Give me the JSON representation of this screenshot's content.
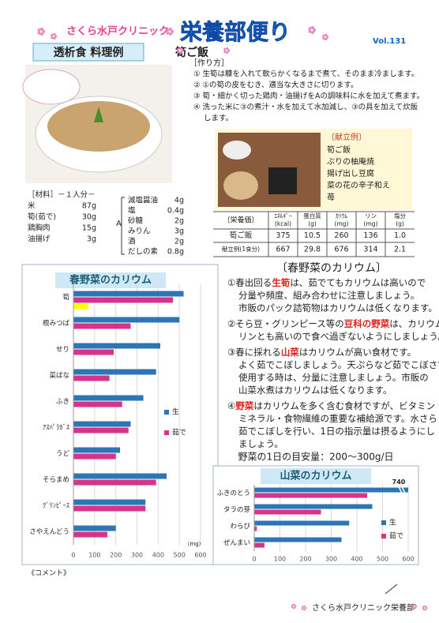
{
  "header": {
    "clinic": "さくら水戸クリニック",
    "title": "栄養部便り",
    "vol": "Vol.131",
    "label": "透析食 料理例",
    "dish": "筍ご飯"
  },
  "method": {
    "heading": "［作り方］",
    "steps": [
      "① 生筍は糠を入れて軟らかくなるまで煮て、そのまま冷まします。",
      "② ①の筍の皮をむき、適当な大きさに切ります。",
      "③ 筍・細かく切った鶏肉・油揚げをAの調味料に水を加えて煮ます。",
      "④ 洗った米に③の煮汁・水を加えて水加減し、③の具を加えて炊飯",
      "します。"
    ]
  },
  "menu": {
    "heading": "〔献立例〕",
    "items": [
      "筍ご飯",
      "ぶりの柚庵焼",
      "揚げ出し豆腐",
      "菜の花の辛子和え",
      "苺"
    ]
  },
  "ingredients": {
    "heading": "［材料］－１人分－",
    "main": [
      [
        "米",
        "87g"
      ],
      [
        "筍(茹で)",
        "30g"
      ],
      [
        "鶏胸肉",
        "15g"
      ],
      [
        "油揚げ",
        "3g"
      ]
    ],
    "group": "A",
    "seasoning": [
      [
        "減塩醤油",
        "4g"
      ],
      [
        "塩",
        "0.4g"
      ],
      [
        "砂糖",
        "2g"
      ],
      [
        "みりん",
        "3g"
      ],
      [
        "酒",
        "2g"
      ],
      [
        "だしの素",
        "0.8g"
      ]
    ]
  },
  "table": {
    "header": [
      "〔栄養価〕",
      [
        "ｴﾈﾙｷﾞｰ",
        "(kcal)"
      ],
      [
        "蛋白質",
        "(g)"
      ],
      [
        "ｶﾘｳﾑ",
        "(mg)"
      ],
      [
        "リン",
        "(mg)"
      ],
      [
        "塩分",
        "(g)"
      ]
    ],
    "rows": [
      [
        "筍ご飯",
        "375",
        "10.5",
        "260",
        "136",
        "1.0"
      ],
      [
        "献立例(1食分)",
        "667",
        "29.8",
        "676",
        "314",
        "2.1"
      ]
    ]
  },
  "text": {
    "title": "〔春野菜のカリウム〕",
    "items": [
      [
        [
          "①春出回る",
          {
            "text": "生筍",
            "color": "#e0201b"
          },
          "は、茹でてもカリウムは高いので"
        ],
        [
          "分量や頻度、組み合わせに注意しましょう。"
        ],
        [
          "市販のパック詰筍物はカリウムは低くなります。"
        ]
      ],
      [
        [
          "②そら豆・グリンピース等の",
          {
            "text": "豆科の野菜",
            "color": "#e0201b"
          },
          "は、カリウム・"
        ],
        [
          "リンとも高いので食べ過ぎないようにしましょう。"
        ]
      ],
      [
        [
          "③春に採れる",
          {
            "text": "山菜",
            "color": "#e0201b"
          },
          "はカリウムが高い食材です。"
        ],
        [
          "よく茹でこぼしましょう。天ぷらなど茹でこぼさず"
        ],
        [
          "使用する時は、分量に注意しましょう。市販の"
        ],
        [
          "山菜水煮はカリウムは低くなります。"
        ]
      ],
      [
        [
          "④",
          {
            "text": "野菜",
            "color": "#e0201b"
          },
          "はカリウムを多く含む食材ですが、ビタミン・"
        ],
        [
          "ミネラル・食物繊維の重要な補給源です。水さらし"
        ],
        [
          "茹でこぼしを行い、1日の指示量は摂るようにし"
        ],
        [
          "ましょう。"
        ]
      ]
    ],
    "guide": "野菜の1日の目安量：200～300g/日"
  },
  "chart_data": [
    {
      "type": "bar",
      "orientation": "horizontal",
      "title": "春野菜のカリウム",
      "categories": [
        "筍",
        "根みつば",
        "せり",
        "菜ばな",
        "ふき",
        "ｱｽﾊﾟﾗｶﾞｽ",
        "うど",
        "そらまめ",
        "ｸﾞﾘﾝﾋﾟｰｽ",
        "さやえんどう"
      ],
      "series": [
        {
          "name": "生",
          "color": "#2e75b6",
          "values": [
            520,
            500,
            410,
            390,
            330,
            270,
            220,
            440,
            340,
            200
          ]
        },
        {
          "name": "茹で",
          "color": "#d6338a",
          "values": [
            470,
            270,
            190,
            170,
            230,
            260,
            200,
            390,
            340,
            160
          ]
        },
        {
          "color": "#ffff00",
          "values": [
            70,
            null,
            null,
            null,
            null,
            null,
            null,
            null,
            null,
            null
          ]
        }
      ],
      "xlim": [
        0,
        600
      ],
      "xticks": [
        0,
        100,
        200,
        300,
        400,
        500,
        600
      ],
      "xlabel": "（mg）",
      "grid": true
    },
    {
      "type": "bar",
      "orientation": "horizontal",
      "title": "山菜のカリウム",
      "categories": [
        "ふきのとう",
        "タラの芽",
        "わらび",
        "ぜんまい"
      ],
      "series": [
        {
          "name": "生",
          "color": "#2e75b6",
          "values": [
            740,
            460,
            370,
            340
          ],
          "value_labels": [
            "740",
            null,
            null,
            null
          ]
        },
        {
          "name": "茹で",
          "color": "#d6338a",
          "values": [
            440,
            260,
            10,
            40
          ]
        }
      ],
      "xlim": [
        0,
        600
      ],
      "xticks": [
        0,
        100,
        200,
        300,
        400,
        500,
        600
      ],
      "grid": true
    }
  ],
  "comment": "《コメント》",
  "footer": "さくら水戸クリニック栄養部"
}
